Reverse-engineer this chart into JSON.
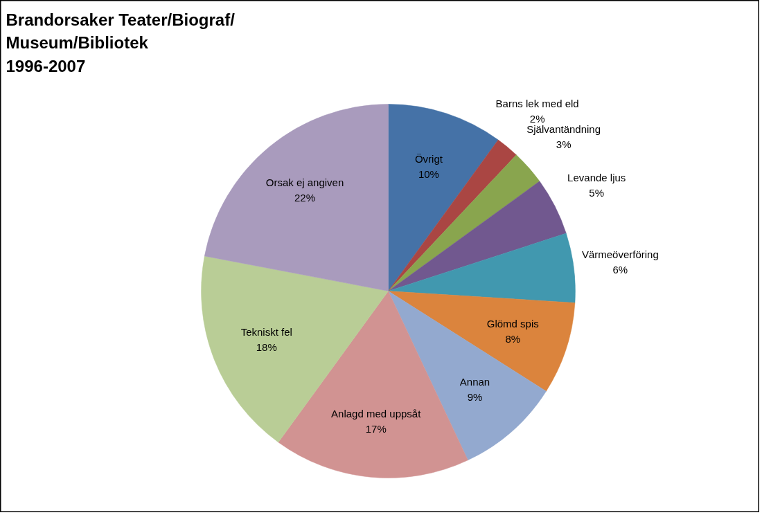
{
  "chart_data": {
    "type": "pie",
    "title": "Brandorsaker Teater/Biograf/\nMuseum/Bibliotek\n1996-2007",
    "categories": [
      "Övrigt",
      "Barns lek med eld",
      "Självantändning",
      "Levande ljus",
      "Värmeöverföring",
      "Glömd spis",
      "Annan",
      "Anlagd med uppsåt",
      "Tekniskt fel",
      "Orsak ej angiven"
    ],
    "values": [
      10,
      2,
      3,
      5,
      6,
      8,
      9,
      17,
      18,
      22
    ],
    "colors": [
      "#4572a7",
      "#aa4643",
      "#89a54e",
      "#71588f",
      "#4198af",
      "#db843d",
      "#93a9cf",
      "#d19392",
      "#b9cd96",
      "#a99bbd"
    ],
    "value_labels": [
      "10%",
      "2%",
      "3%",
      "5%",
      "6%",
      "8%",
      "9%",
      "17%",
      "18%",
      "22%"
    ]
  }
}
